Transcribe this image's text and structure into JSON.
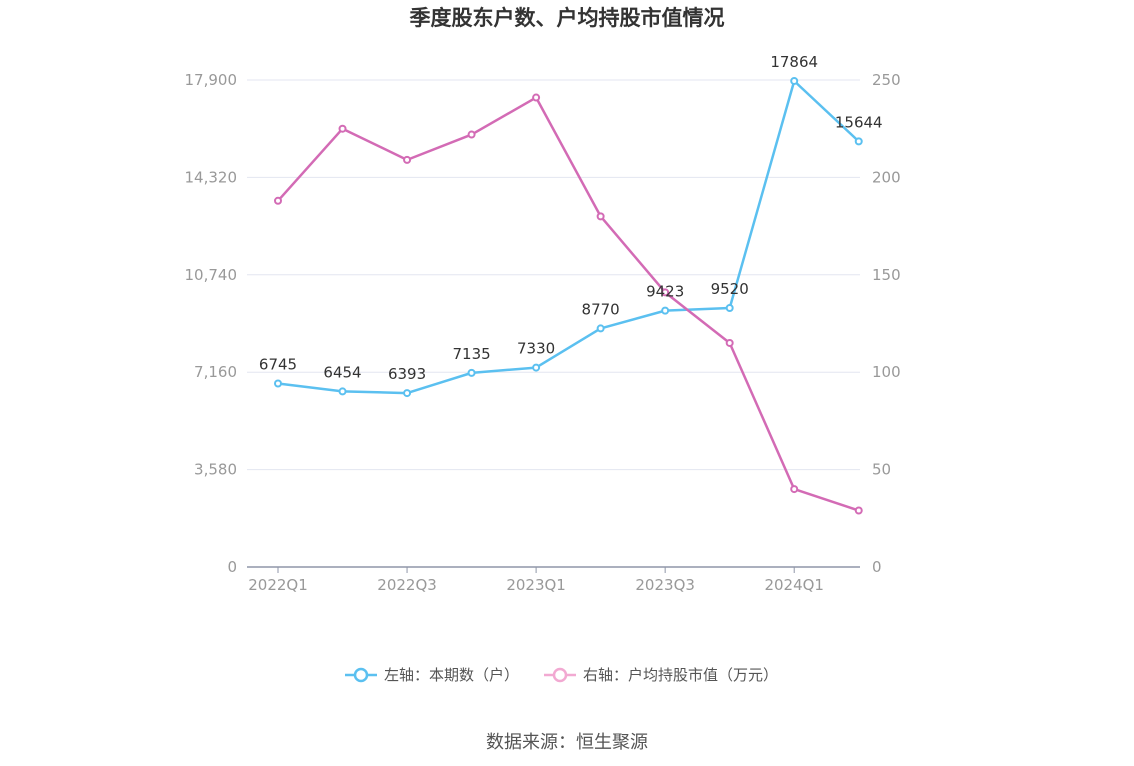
{
  "chart_data": {
    "type": "line",
    "title": "季度股东户数、户均持股市值情况",
    "categories": [
      "2022Q1",
      "2022Q2",
      "2022Q3",
      "2022Q4",
      "2023Q1",
      "2023Q2",
      "2023Q3",
      "2023Q4",
      "2024Q1",
      "2024Q2"
    ],
    "x_tick_labels": [
      "2022Q1",
      "2022Q3",
      "2023Q1",
      "2023Q3",
      "2024Q1"
    ],
    "left_axis": {
      "ticks": [
        "0",
        "3,580",
        "7,160",
        "10,740",
        "14,320",
        "17,900"
      ],
      "ylim": [
        0,
        17900
      ]
    },
    "right_axis": {
      "ticks": [
        "0",
        "50",
        "100",
        "150",
        "200",
        "250"
      ],
      "ylim": [
        0,
        250
      ]
    },
    "series": [
      {
        "name": "左轴：本期数（户）",
        "axis": "left",
        "color": "#5bc0f0",
        "values": [
          6745,
          6454,
          6393,
          7135,
          7330,
          8770,
          9423,
          9520,
          17864,
          15644
        ],
        "labels": [
          "6745",
          "6454",
          "6393",
          "7135",
          "7330",
          "8770",
          "9423",
          "9520",
          "17864",
          "15644"
        ]
      },
      {
        "name": "右轴：户均持股市值（万元）",
        "axis": "right",
        "color": "#d36bb5",
        "values": [
          188,
          225,
          209,
          222,
          241,
          180,
          141,
          115,
          40,
          29
        ]
      }
    ],
    "legend_position": "bottom",
    "grid": true
  },
  "source": "数据来源：恒生聚源"
}
